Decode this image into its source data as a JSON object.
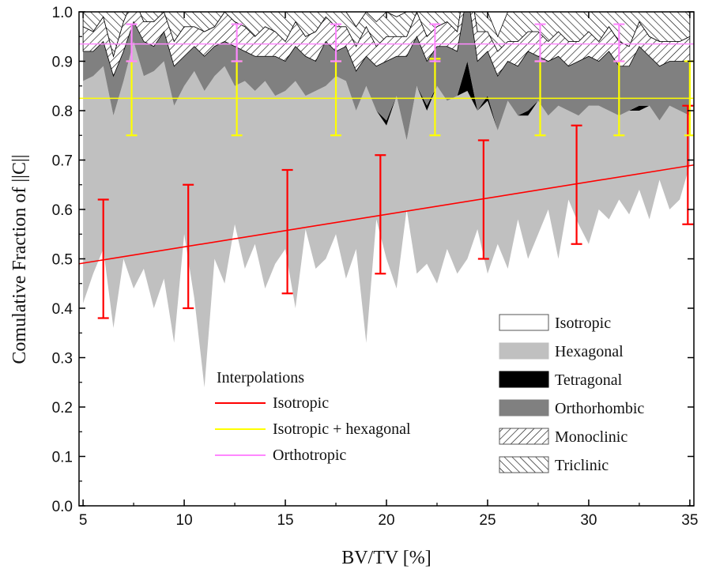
{
  "chart_data": {
    "type": "area",
    "xlabel": "BV/TV [%]",
    "ylabel": "Comulative Fraction of ||C||",
    "xlim": [
      4.8,
      35.2
    ],
    "ylim": [
      0,
      1
    ],
    "x_ticks": [
      "5",
      "10",
      "15",
      "20",
      "25",
      "30",
      "35"
    ],
    "y_ticks": [
      "0.0",
      "0.1",
      "0.2",
      "0.3",
      "0.4",
      "0.5",
      "0.6",
      "0.7",
      "0.8",
      "0.9",
      "1.0"
    ],
    "x": [
      5,
      5.5,
      6,
      6.5,
      7,
      7.5,
      8,
      8.5,
      9,
      9.5,
      10,
      10.5,
      11,
      11.5,
      12,
      12.5,
      13,
      13.5,
      14,
      14.5,
      15,
      15.5,
      16,
      16.5,
      17,
      17.5,
      18,
      18.5,
      19,
      19.5,
      20,
      20.5,
      21,
      21.5,
      22,
      22.5,
      23,
      23.5,
      24,
      24.5,
      25,
      25.5,
      26,
      26.5,
      27,
      27.5,
      28,
      28.5,
      29,
      29.5,
      30,
      30.5,
      31,
      31.5,
      32,
      32.5,
      33,
      33.5,
      34,
      34.5,
      35
    ],
    "series": [
      {
        "name": "Isotropic",
        "color": "#ffffff",
        "pattern": "solid",
        "values": [
          0.41,
          0.47,
          0.52,
          0.36,
          0.5,
          0.44,
          0.48,
          0.4,
          0.46,
          0.33,
          0.55,
          0.42,
          0.24,
          0.5,
          0.45,
          0.57,
          0.48,
          0.53,
          0.44,
          0.49,
          0.52,
          0.4,
          0.56,
          0.48,
          0.5,
          0.55,
          0.46,
          0.52,
          0.33,
          0.58,
          0.5,
          0.44,
          0.6,
          0.47,
          0.49,
          0.45,
          0.52,
          0.47,
          0.5,
          0.56,
          0.47,
          0.53,
          0.48,
          0.58,
          0.5,
          0.55,
          0.6,
          0.5,
          0.62,
          0.57,
          0.53,
          0.6,
          0.58,
          0.62,
          0.59,
          0.64,
          0.58,
          0.66,
          0.6,
          0.62,
          0.69
        ]
      },
      {
        "name": "Hexagonal",
        "color": "#c0c0c0",
        "pattern": "solid",
        "values": [
          0.45,
          0.4,
          0.37,
          0.43,
          0.36,
          0.5,
          0.39,
          0.48,
          0.44,
          0.48,
          0.3,
          0.46,
          0.6,
          0.37,
          0.44,
          0.28,
          0.38,
          0.31,
          0.42,
          0.34,
          0.32,
          0.46,
          0.27,
          0.36,
          0.35,
          0.32,
          0.4,
          0.28,
          0.52,
          0.22,
          0.27,
          0.39,
          0.14,
          0.38,
          0.31,
          0.4,
          0.3,
          0.36,
          0.34,
          0.24,
          0.35,
          0.23,
          0.34,
          0.21,
          0.29,
          0.27,
          0.19,
          0.31,
          0.18,
          0.22,
          0.28,
          0.21,
          0.22,
          0.17,
          0.21,
          0.16,
          0.23,
          0.12,
          0.21,
          0.18,
          0.1
        ]
      },
      {
        "name": "Tetragonal",
        "color": "#000000",
        "pattern": "solid",
        "values": [
          0.0,
          0.0,
          0.0,
          0.0,
          0.0,
          0.0,
          0.0,
          0.0,
          0.0,
          0.0,
          0.0,
          0.0,
          0.0,
          0.0,
          0.0,
          0.0,
          0.0,
          0.0,
          0.0,
          0.0,
          0.0,
          0.0,
          0.0,
          0.0,
          0.0,
          0.0,
          0.0,
          0.0,
          0.0,
          0.0,
          0.01,
          0.0,
          0.0,
          0.0,
          0.01,
          0.0,
          0.0,
          0.0,
          0.06,
          0.0,
          0.01,
          0.0,
          0.0,
          0.0,
          0.01,
          0.0,
          0.0,
          0.0,
          0.0,
          0.0,
          0.0,
          0.0,
          0.0,
          0.0,
          0.0,
          0.01,
          0.0,
          0.0,
          0.0,
          0.0,
          0.0
        ]
      },
      {
        "name": "Orthorhombic",
        "color": "#808080",
        "pattern": "solid",
        "values": [
          0.06,
          0.05,
          0.05,
          0.08,
          0.06,
          0.04,
          0.07,
          0.05,
          0.06,
          0.08,
          0.06,
          0.05,
          0.07,
          0.06,
          0.05,
          0.08,
          0.06,
          0.07,
          0.05,
          0.08,
          0.06,
          0.07,
          0.08,
          0.06,
          0.09,
          0.05,
          0.07,
          0.08,
          0.06,
          0.09,
          0.12,
          0.08,
          0.17,
          0.1,
          0.09,
          0.08,
          0.11,
          0.09,
          0.14,
          0.1,
          0.09,
          0.11,
          0.08,
          0.1,
          0.12,
          0.09,
          0.11,
          0.1,
          0.09,
          0.11,
          0.1,
          0.09,
          0.12,
          0.1,
          0.09,
          0.12,
          0.1,
          0.11,
          0.09,
          0.1,
          0.11
        ]
      },
      {
        "name": "Monoclinic",
        "color": "#ffffff",
        "pattern": "hatch-forward",
        "values": [
          0.05,
          0.04,
          0.05,
          0.04,
          0.06,
          0.05,
          0.04,
          0.05,
          0.04,
          0.05,
          0.06,
          0.04,
          0.05,
          0.04,
          0.06,
          0.05,
          0.05,
          0.04,
          0.06,
          0.05,
          0.04,
          0.05,
          0.04,
          0.06,
          0.05,
          0.05,
          0.04,
          0.05,
          0.06,
          0.04,
          0.05,
          0.04,
          0.04,
          0.05,
          0.05,
          0.04,
          0.05,
          0.04,
          0.05,
          0.06,
          0.04,
          0.05,
          0.04,
          0.05,
          0.04,
          0.05,
          0.04,
          0.05,
          0.05,
          0.04,
          0.05,
          0.04,
          0.05,
          0.05,
          0.04,
          0.05,
          0.04,
          0.05,
          0.04,
          0.04,
          0.05
        ]
      },
      {
        "name": "Triclinic",
        "color": "#ffffff",
        "pattern": "hatch-back",
        "values": [
          0.03,
          0.04,
          0.03,
          0.09,
          0.04,
          0.03,
          0.02,
          0.05,
          0.03,
          0.06,
          0.03,
          0.03,
          0.04,
          0.03,
          0.05,
          0.03,
          0.03,
          0.05,
          0.03,
          0.04,
          0.06,
          0.04,
          0.05,
          0.04,
          0.06,
          0.03,
          0.03,
          0.04,
          0.03,
          0.05,
          0.05,
          0.04,
          0.05,
          0.0,
          0.06,
          0.03,
          0.02,
          0.04,
          0.05,
          0.04,
          0.04,
          0.03,
          0.06,
          0.06,
          0.04,
          0.04,
          0.06,
          0.04,
          0.06,
          0.06,
          0.06,
          0.06,
          0.03,
          0.06,
          0.07,
          0.02,
          0.05,
          0.06,
          0.06,
          0.06,
          0.05
        ]
      }
    ],
    "legend": {
      "placement": "bottom-right",
      "entries": [
        "Isotropic",
        "Hexagonal",
        "Tetragonal",
        "Orthorhombic",
        "Monoclinic",
        "Triclinic"
      ]
    },
    "interpolations": {
      "title": "Interpolations",
      "lines": [
        {
          "name": "Isotropic",
          "color": "#ff0000",
          "start": [
            4.8,
            0.49
          ],
          "end": [
            35.2,
            0.69
          ],
          "error_bars": [
            [
              6.0,
              0.38,
              0.62
            ],
            [
              10.2,
              0.4,
              0.65
            ],
            [
              15.1,
              0.43,
              0.68
            ],
            [
              19.7,
              0.47,
              0.71
            ],
            [
              24.8,
              0.5,
              0.74
            ],
            [
              29.4,
              0.53,
              0.77
            ],
            [
              34.9,
              0.57,
              0.81
            ]
          ]
        },
        {
          "name": "Isotropic + hexagonal",
          "color": "#ffff00",
          "start": [
            4.8,
            0.825
          ],
          "end": [
            35.2,
            0.825
          ],
          "error_bars": [
            [
              7.4,
              0.75,
              0.9
            ],
            [
              12.6,
              0.75,
              0.9
            ],
            [
              17.5,
              0.75,
              0.9
            ],
            [
              22.4,
              0.75,
              0.905
            ],
            [
              27.6,
              0.75,
              0.9
            ],
            [
              31.5,
              0.75,
              0.9
            ],
            [
              35.0,
              0.75,
              0.9
            ]
          ]
        },
        {
          "name": "Orthotropic",
          "color": "#ff88ff",
          "start": [
            4.8,
            0.935
          ],
          "end": [
            35.2,
            0.935
          ],
          "error_bars": [
            [
              7.4,
              0.9,
              0.975
            ],
            [
              12.6,
              0.9,
              0.975
            ],
            [
              17.5,
              0.9,
              0.975
            ],
            [
              22.4,
              0.9,
              0.975
            ],
            [
              27.6,
              0.9,
              0.975
            ],
            [
              31.5,
              0.9,
              0.975
            ]
          ]
        }
      ]
    }
  }
}
